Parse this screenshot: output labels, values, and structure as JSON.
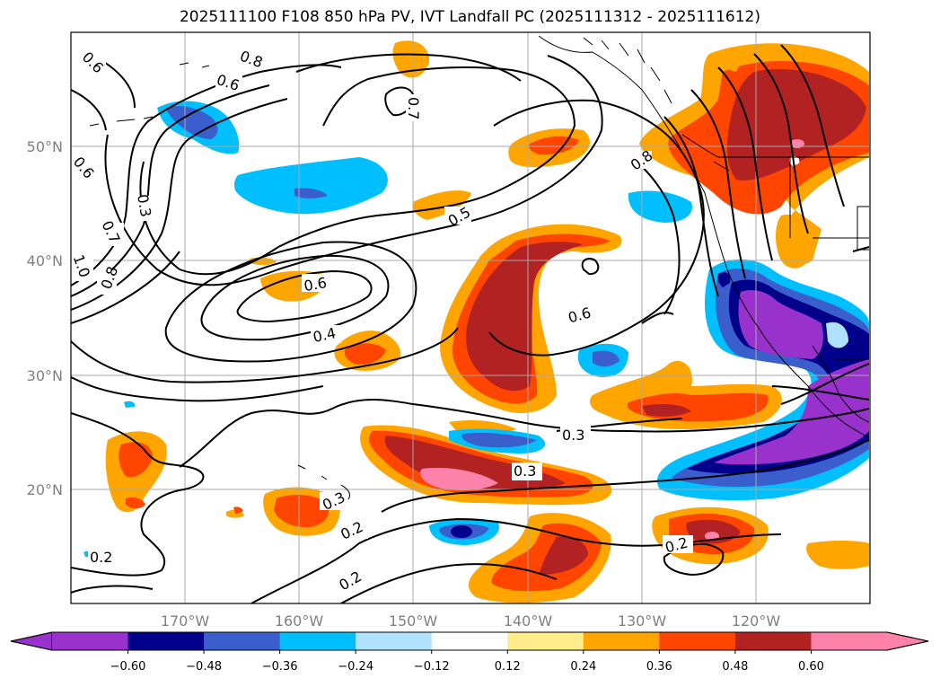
{
  "title": "2025111100 F108 850 hPa PV, IVT Landfall PC (2025111312 - 2025111612)",
  "axes": {
    "lon_ticks": [
      "170°W",
      "160°W",
      "150°W",
      "140°W",
      "130°W",
      "120°W"
    ],
    "lat_ticks": [
      "50°N",
      "40°N",
      "30°N",
      "20°N"
    ],
    "lon_range": [
      -180,
      -110
    ],
    "lat_range": [
      10,
      60
    ]
  },
  "contour_labels": [
    "0.6",
    "0.8",
    "0.6",
    "0.7",
    "0.6",
    "0.3",
    "0.7",
    "1.0",
    "0.8",
    "0.8",
    "0.5",
    "0.6",
    "0.6",
    "0.4",
    "0.3",
    "0.3",
    "0.3",
    "0.2",
    "0.2",
    "0.2",
    "0.2"
  ],
  "colorbar": {
    "ticks": [
      "−0.60",
      "−0.48",
      "−0.36",
      "−0.24",
      "−0.12",
      "0.12",
      "0.24",
      "0.36",
      "0.48",
      "0.60"
    ],
    "colors": [
      "#9932cc",
      "#00008b",
      "#3a5fcd",
      "#00bfff",
      "#b0e2ff",
      "#ffffff",
      "#ffec8b",
      "#ffa500",
      "#ff4500",
      "#b22222",
      "#ff82ab"
    ]
  }
}
